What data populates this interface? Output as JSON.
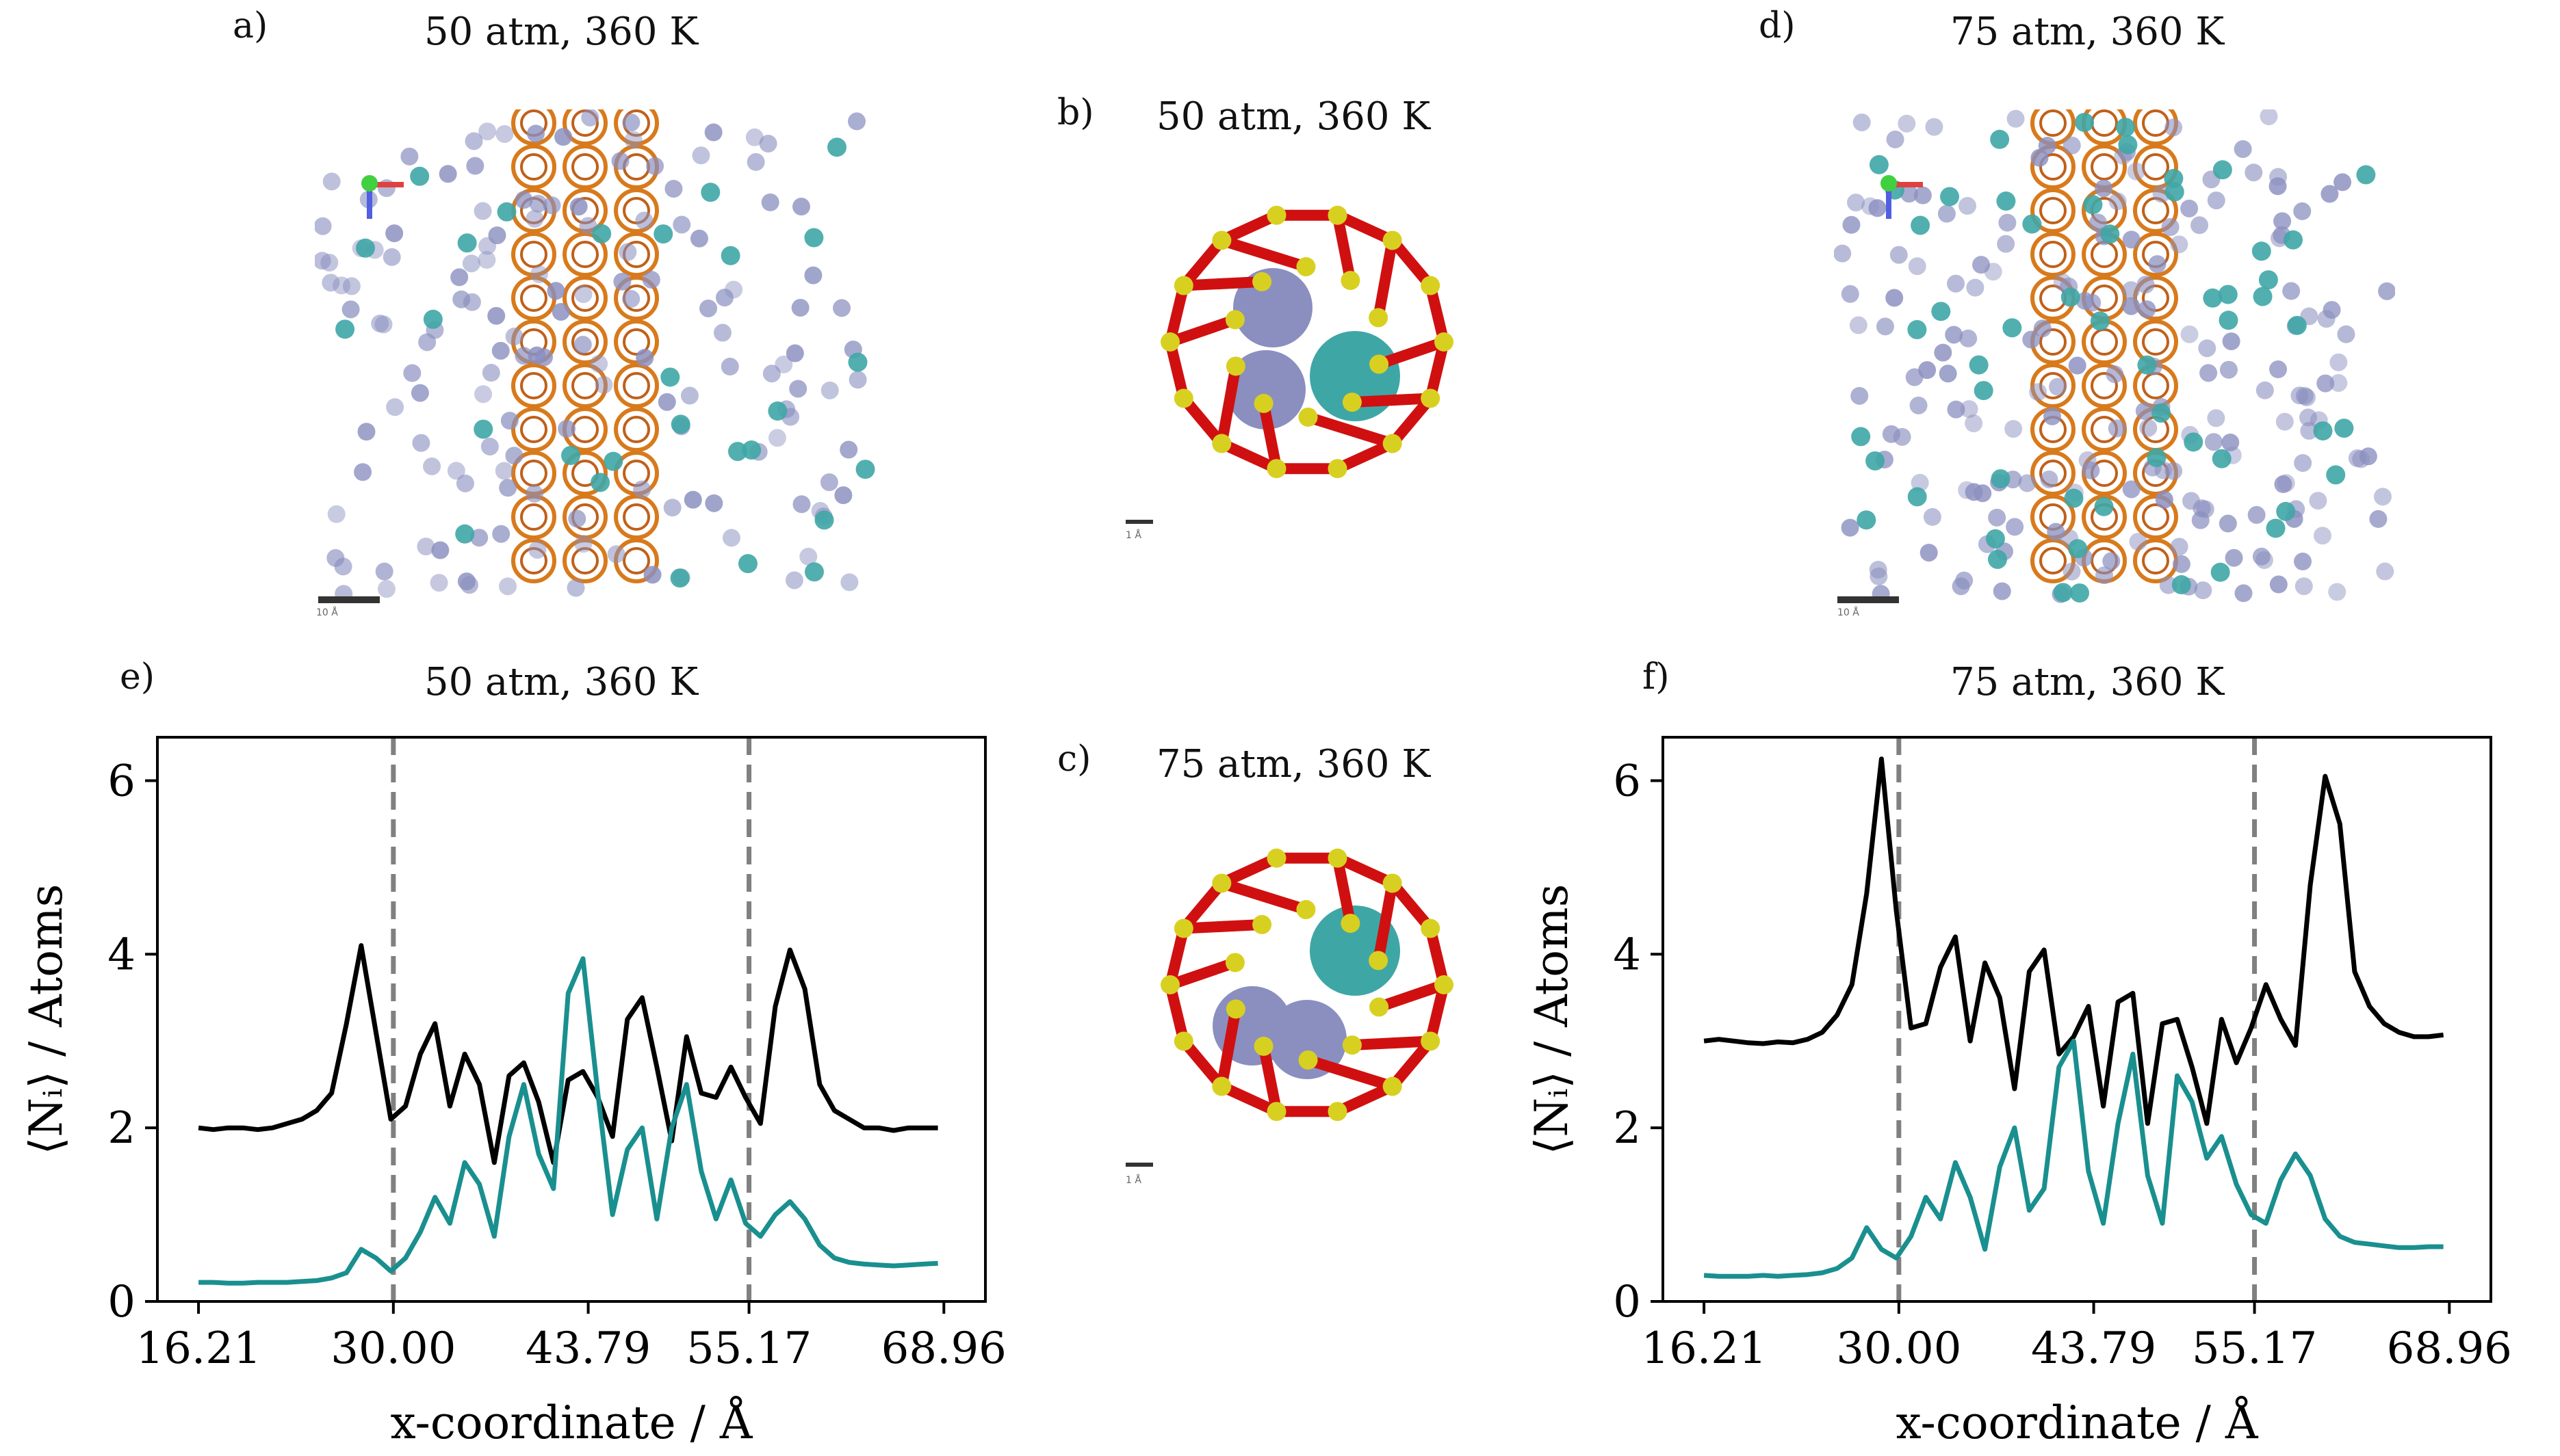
{
  "panels": {
    "a": {
      "label": "a)",
      "title": "50 atm, 360 K",
      "scale_label": "10 Å"
    },
    "b": {
      "label": "b)",
      "title": "50 atm, 360 K",
      "scale_label": "1 Å"
    },
    "c": {
      "label": "c)",
      "title": "75 atm, 360 K",
      "scale_label": "1 Å"
    },
    "d": {
      "label": "d)",
      "title": "75 atm, 360 K",
      "scale_label": "10 Å"
    },
    "e": {
      "label": "e)",
      "title": "50 atm, 360 K"
    },
    "f": {
      "label": "f)",
      "title": "75 atm, 360 K"
    }
  },
  "colors": {
    "black_series": "#000000",
    "teal_series": "#1a8f8f",
    "dashed_line": "#808080",
    "framework_red": "#d01010",
    "framework_yellow": "#d8d020",
    "framework_orange": "#d87a1c",
    "gas_lavender": "#8a8fbf",
    "gas_teal": "#3fa6a6"
  },
  "chart_data": [
    {
      "id": "e",
      "type": "line",
      "title": "50 atm, 360 K",
      "xlabel": "x-coordinate / Å",
      "ylabel": "⟨Nᵢ⟩ / Atoms",
      "xlim": [
        13.3,
        71.9
      ],
      "ylim": [
        0,
        6.5
      ],
      "xticks": [
        16.21,
        30.0,
        43.79,
        55.17,
        68.96
      ],
      "xtick_labels": [
        "16.21",
        "30.00",
        "43.79",
        "55.17",
        "68.96"
      ],
      "yticks": [
        0,
        2,
        4,
        6
      ],
      "ytick_labels": [
        "0",
        "2",
        "4",
        "6"
      ],
      "vlines": [
        30.0,
        55.17
      ],
      "series": [
        {
          "name": "black",
          "color": "#000000",
          "x": [
            16.21,
            17.26,
            18.3,
            19.35,
            20.4,
            21.44,
            22.49,
            23.54,
            24.58,
            25.63,
            26.68,
            27.72,
            28.77,
            29.82,
            30.86,
            31.91,
            32.95,
            34.0,
            35.05,
            36.09,
            37.14,
            38.19,
            39.23,
            40.28,
            41.33,
            42.37,
            43.42,
            44.47,
            45.51,
            46.56,
            47.61,
            48.65,
            49.7,
            50.75,
            51.79,
            52.84,
            53.89,
            54.93,
            55.98,
            57.03,
            58.07,
            59.12,
            60.17,
            61.21,
            62.26,
            63.31,
            64.35,
            65.4,
            66.45,
            67.49,
            68.54
          ],
          "values": [
            2.0,
            1.98,
            2.0,
            2.0,
            1.98,
            2.0,
            2.05,
            2.1,
            2.2,
            2.4,
            3.2,
            4.1,
            3.1,
            2.1,
            2.25,
            2.85,
            3.2,
            2.25,
            2.85,
            2.5,
            1.6,
            2.6,
            2.75,
            2.3,
            1.6,
            2.55,
            2.65,
            2.35,
            1.9,
            3.25,
            3.5,
            2.7,
            1.85,
            3.05,
            2.4,
            2.35,
            2.7,
            2.35,
            2.05,
            3.4,
            4.05,
            3.6,
            2.5,
            2.2,
            2.1,
            2.0,
            2.0,
            1.97,
            2.0,
            2.0,
            2.0
          ]
        },
        {
          "name": "teal",
          "color": "#1a8f8f",
          "x": [
            16.21,
            17.26,
            18.3,
            19.35,
            20.4,
            21.44,
            22.49,
            23.54,
            24.58,
            25.63,
            26.68,
            27.72,
            28.77,
            29.82,
            30.86,
            31.91,
            32.95,
            34.0,
            35.05,
            36.09,
            37.14,
            38.19,
            39.23,
            40.28,
            41.33,
            42.37,
            43.42,
            44.47,
            45.51,
            46.56,
            47.61,
            48.65,
            49.7,
            50.75,
            51.79,
            52.84,
            53.89,
            54.93,
            55.98,
            57.03,
            58.07,
            59.12,
            60.17,
            61.21,
            62.26,
            63.31,
            64.35,
            65.4,
            66.45,
            67.49,
            68.54
          ],
          "values": [
            0.22,
            0.22,
            0.21,
            0.21,
            0.22,
            0.22,
            0.22,
            0.23,
            0.24,
            0.27,
            0.33,
            0.6,
            0.5,
            0.35,
            0.5,
            0.8,
            1.2,
            0.9,
            1.6,
            1.35,
            0.75,
            1.9,
            2.5,
            1.7,
            1.3,
            3.55,
            3.95,
            2.4,
            1.0,
            1.75,
            2.0,
            0.95,
            2.0,
            2.5,
            1.5,
            0.95,
            1.4,
            0.9,
            0.75,
            1.0,
            1.15,
            0.95,
            0.65,
            0.5,
            0.45,
            0.43,
            0.42,
            0.41,
            0.42,
            0.43,
            0.44
          ]
        }
      ]
    },
    {
      "id": "f",
      "type": "line",
      "title": "75 atm, 360 K",
      "xlabel": "x-coordinate / Å",
      "ylabel": "⟨Nᵢ⟩ / Atoms",
      "xlim": [
        13.3,
        71.9
      ],
      "ylim": [
        0,
        6.5
      ],
      "xticks": [
        16.21,
        30.0,
        43.79,
        55.17,
        68.96
      ],
      "xtick_labels": [
        "16.21",
        "30.00",
        "43.79",
        "55.17",
        "68.96"
      ],
      "yticks": [
        0,
        2,
        4,
        6
      ],
      "ytick_labels": [
        "0",
        "2",
        "4",
        "6"
      ],
      "vlines": [
        30.0,
        55.17
      ],
      "series": [
        {
          "name": "black",
          "color": "#000000",
          "x": [
            16.21,
            17.26,
            18.3,
            19.35,
            20.4,
            21.44,
            22.49,
            23.54,
            24.58,
            25.63,
            26.68,
            27.72,
            28.77,
            29.82,
            30.86,
            31.91,
            32.95,
            34.0,
            35.05,
            36.09,
            37.14,
            38.19,
            39.23,
            40.28,
            41.33,
            42.37,
            43.42,
            44.47,
            45.51,
            46.56,
            47.61,
            48.65,
            49.7,
            50.75,
            51.79,
            52.84,
            53.89,
            54.93,
            55.98,
            57.03,
            58.07,
            59.12,
            60.17,
            61.21,
            62.26,
            63.31,
            64.35,
            65.4,
            66.45,
            67.49,
            68.54
          ],
          "values": [
            3.0,
            3.02,
            3.0,
            2.98,
            2.97,
            2.99,
            2.98,
            3.02,
            3.1,
            3.3,
            3.65,
            4.7,
            6.25,
            4.5,
            3.15,
            3.2,
            3.85,
            4.2,
            3.0,
            3.9,
            3.5,
            2.45,
            3.8,
            4.05,
            2.85,
            3.05,
            3.4,
            2.25,
            3.45,
            3.55,
            2.05,
            3.2,
            3.25,
            2.7,
            2.05,
            3.25,
            2.75,
            3.15,
            3.65,
            3.25,
            2.95,
            4.8,
            6.05,
            5.5,
            3.8,
            3.4,
            3.2,
            3.1,
            3.05,
            3.05,
            3.07
          ]
        },
        {
          "name": "teal",
          "color": "#1a8f8f",
          "x": [
            16.21,
            17.26,
            18.3,
            19.35,
            20.4,
            21.44,
            22.49,
            23.54,
            24.58,
            25.63,
            26.68,
            27.72,
            28.77,
            29.82,
            30.86,
            31.91,
            32.95,
            34.0,
            35.05,
            36.09,
            37.14,
            38.19,
            39.23,
            40.28,
            41.33,
            42.37,
            43.42,
            44.47,
            45.51,
            46.56,
            47.61,
            48.65,
            49.7,
            50.75,
            51.79,
            52.84,
            53.89,
            54.93,
            55.98,
            57.03,
            58.07,
            59.12,
            60.17,
            61.21,
            62.26,
            63.31,
            64.35,
            65.4,
            66.45,
            67.49,
            68.54
          ],
          "values": [
            0.3,
            0.29,
            0.29,
            0.29,
            0.3,
            0.29,
            0.3,
            0.31,
            0.33,
            0.38,
            0.5,
            0.85,
            0.6,
            0.5,
            0.75,
            1.2,
            0.95,
            1.6,
            1.2,
            0.6,
            1.55,
            2.0,
            1.05,
            1.3,
            2.7,
            3.0,
            1.5,
            0.9,
            2.05,
            2.85,
            1.45,
            0.9,
            2.6,
            2.3,
            1.65,
            1.9,
            1.35,
            1.0,
            0.9,
            1.4,
            1.7,
            1.45,
            0.95,
            0.75,
            0.68,
            0.66,
            0.64,
            0.62,
            0.62,
            0.63,
            0.63
          ]
        }
      ]
    }
  ]
}
